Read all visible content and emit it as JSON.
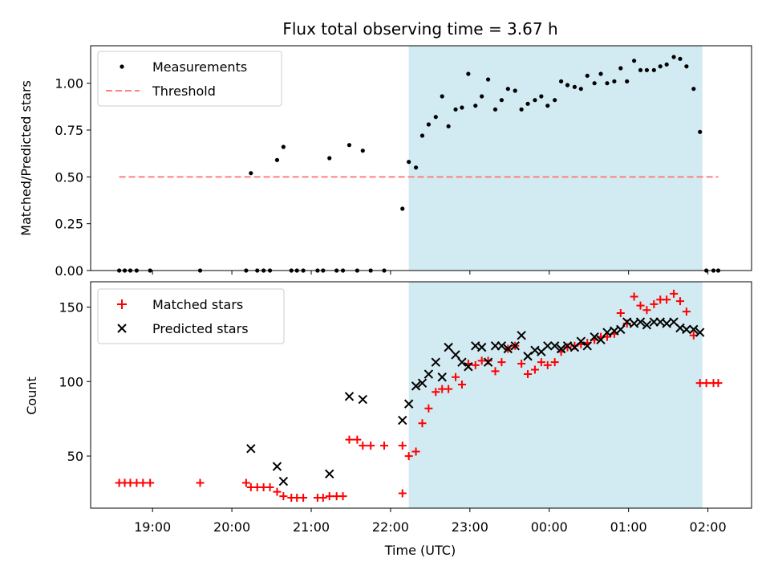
{
  "chart_data": [
    {
      "type": "scatter",
      "title": "Flux total observing time = 3.67 h",
      "xlabel": "",
      "ylabel": "Matched/Predicted stars",
      "xlim": [
        18.22,
        26.55
      ],
      "ylim": [
        0,
        1.2
      ],
      "yticks": [
        0.0,
        0.25,
        0.5,
        0.75,
        1.0
      ],
      "ytick_labels": [
        "0.00",
        "0.25",
        "0.50",
        "0.75",
        "1.00"
      ],
      "shaded_span": [
        22.23,
        25.93
      ],
      "shade_color": "#add8e6",
      "legend_position": "upper-left",
      "series": [
        {
          "name": "Measurements",
          "marker": "dot",
          "color": "#000000",
          "points": [
            [
              18.58,
              0
            ],
            [
              18.65,
              0
            ],
            [
              18.72,
              0
            ],
            [
              18.8,
              0
            ],
            [
              18.97,
              0
            ],
            [
              19.6,
              0
            ],
            [
              20.18,
              0
            ],
            [
              20.24,
              0.52
            ],
            [
              20.32,
              0
            ],
            [
              20.4,
              0
            ],
            [
              20.48,
              0
            ],
            [
              20.57,
              0.59
            ],
            [
              20.65,
              0.66
            ],
            [
              20.75,
              0
            ],
            [
              20.82,
              0
            ],
            [
              20.9,
              0
            ],
            [
              21.08,
              0
            ],
            [
              21.15,
              0
            ],
            [
              21.23,
              0.6
            ],
            [
              21.32,
              0
            ],
            [
              21.4,
              0
            ],
            [
              21.48,
              0.67
            ],
            [
              21.58,
              0
            ],
            [
              21.65,
              0.64
            ],
            [
              21.75,
              0
            ],
            [
              21.92,
              0
            ],
            [
              22.15,
              0.33
            ],
            [
              22.23,
              0.58
            ],
            [
              22.32,
              0.55
            ],
            [
              22.4,
              0.72
            ],
            [
              22.48,
              0.78
            ],
            [
              22.57,
              0.82
            ],
            [
              22.65,
              0.93
            ],
            [
              22.73,
              0.77
            ],
            [
              22.82,
              0.86
            ],
            [
              22.9,
              0.87
            ],
            [
              22.98,
              1.05
            ],
            [
              23.07,
              0.88
            ],
            [
              23.15,
              0.93
            ],
            [
              23.23,
              1.02
            ],
            [
              23.32,
              0.86
            ],
            [
              23.4,
              0.91
            ],
            [
              23.48,
              0.97
            ],
            [
              23.57,
              0.96
            ],
            [
              23.65,
              0.86
            ],
            [
              23.73,
              0.89
            ],
            [
              23.82,
              0.91
            ],
            [
              23.9,
              0.93
            ],
            [
              23.98,
              0.88
            ],
            [
              24.07,
              0.91
            ],
            [
              24.15,
              1.01
            ],
            [
              24.23,
              0.99
            ],
            [
              24.32,
              0.98
            ],
            [
              24.4,
              0.97
            ],
            [
              24.48,
              1.04
            ],
            [
              24.57,
              1.0
            ],
            [
              24.65,
              1.05
            ],
            [
              24.73,
              1.0
            ],
            [
              24.82,
              1.01
            ],
            [
              24.9,
              1.08
            ],
            [
              24.98,
              1.01
            ],
            [
              25.07,
              1.12
            ],
            [
              25.15,
              1.07
            ],
            [
              25.23,
              1.07
            ],
            [
              25.32,
              1.07
            ],
            [
              25.4,
              1.09
            ],
            [
              25.48,
              1.1
            ],
            [
              25.57,
              1.14
            ],
            [
              25.65,
              1.13
            ],
            [
              25.73,
              1.09
            ],
            [
              25.82,
              0.97
            ],
            [
              25.9,
              0.74
            ],
            [
              25.98,
              0
            ],
            [
              26.07,
              0
            ],
            [
              26.13,
              0
            ]
          ]
        },
        {
          "name": "Threshold",
          "marker": "dashed-line",
          "color": "#ff7f7f",
          "x": [
            18.58,
            26.13
          ],
          "y": [
            0.5,
            0.5
          ]
        }
      ]
    },
    {
      "type": "scatter",
      "title": "",
      "xlabel": "Time (UTC)",
      "ylabel": "Count",
      "xlim": [
        18.22,
        26.55
      ],
      "ylim": [
        15,
        167
      ],
      "yticks": [
        50,
        100,
        150
      ],
      "ytick_labels": [
        "50",
        "100",
        "150"
      ],
      "xticks": [
        19,
        20,
        21,
        22,
        23,
        24,
        25,
        26
      ],
      "xtick_labels": [
        "19:00",
        "20:00",
        "21:00",
        "22:00",
        "23:00",
        "00:00",
        "01:00",
        "02:00"
      ],
      "shaded_span": [
        22.23,
        25.93
      ],
      "shade_color": "#add8e6",
      "legend_position": "upper-left",
      "series": [
        {
          "name": "Matched stars",
          "marker": "plus",
          "color": "#ff0000",
          "points": [
            [
              18.58,
              32
            ],
            [
              18.65,
              32
            ],
            [
              18.72,
              32
            ],
            [
              18.8,
              32
            ],
            [
              18.88,
              32
            ],
            [
              18.97,
              32
            ],
            [
              19.6,
              32
            ],
            [
              20.18,
              32
            ],
            [
              20.24,
              29
            ],
            [
              20.32,
              29
            ],
            [
              20.4,
              29
            ],
            [
              20.48,
              29
            ],
            [
              20.57,
              26
            ],
            [
              20.65,
              23
            ],
            [
              20.75,
              22
            ],
            [
              20.82,
              22
            ],
            [
              20.9,
              22
            ],
            [
              21.08,
              22
            ],
            [
              21.15,
              22
            ],
            [
              21.23,
              23
            ],
            [
              21.32,
              23
            ],
            [
              21.4,
              23
            ],
            [
              21.48,
              61
            ],
            [
              21.58,
              61
            ],
            [
              21.65,
              57
            ],
            [
              21.75,
              57
            ],
            [
              21.92,
              57
            ],
            [
              22.15,
              25
            ],
            [
              22.15,
              57
            ],
            [
              22.23,
              50
            ],
            [
              22.32,
              53
            ],
            [
              22.4,
              72
            ],
            [
              22.48,
              82
            ],
            [
              22.57,
              93
            ],
            [
              22.65,
              95
            ],
            [
              22.73,
              95
            ],
            [
              22.82,
              103
            ],
            [
              22.9,
              98
            ],
            [
              22.98,
              112
            ],
            [
              23.07,
              111
            ],
            [
              23.15,
              114
            ],
            [
              23.23,
              114
            ],
            [
              23.32,
              107
            ],
            [
              23.4,
              113
            ],
            [
              23.48,
              122
            ],
            [
              23.57,
              124
            ],
            [
              23.65,
              112
            ],
            [
              23.73,
              105
            ],
            [
              23.82,
              108
            ],
            [
              23.9,
              113
            ],
            [
              23.98,
              111
            ],
            [
              24.07,
              113
            ],
            [
              24.15,
              120
            ],
            [
              24.23,
              123
            ],
            [
              24.32,
              124
            ],
            [
              24.4,
              125
            ],
            [
              24.48,
              126
            ],
            [
              24.57,
              128
            ],
            [
              24.65,
              130
            ],
            [
              24.73,
              130
            ],
            [
              24.82,
              132
            ],
            [
              24.9,
              146
            ],
            [
              24.98,
              139
            ],
            [
              25.07,
              157
            ],
            [
              25.15,
              151
            ],
            [
              25.23,
              148
            ],
            [
              25.32,
              152
            ],
            [
              25.4,
              155
            ],
            [
              25.48,
              155
            ],
            [
              25.57,
              159
            ],
            [
              25.65,
              154
            ],
            [
              25.73,
              147
            ],
            [
              25.82,
              131
            ],
            [
              25.9,
              99
            ],
            [
              25.98,
              99
            ],
            [
              26.07,
              99
            ],
            [
              26.13,
              99
            ]
          ]
        },
        {
          "name": "Predicted stars",
          "marker": "cross",
          "color": "#000000",
          "points": [
            [
              20.24,
              55
            ],
            [
              20.57,
              43
            ],
            [
              20.65,
              33
            ],
            [
              21.23,
              38
            ],
            [
              21.48,
              90
            ],
            [
              21.65,
              88
            ],
            [
              22.15,
              74
            ],
            [
              22.23,
              85
            ],
            [
              22.32,
              97
            ],
            [
              22.4,
              99
            ],
            [
              22.48,
              105
            ],
            [
              22.57,
              113
            ],
            [
              22.65,
              103
            ],
            [
              22.73,
              123
            ],
            [
              22.82,
              118
            ],
            [
              22.9,
              113
            ],
            [
              22.98,
              110
            ],
            [
              23.07,
              124
            ],
            [
              23.15,
              123
            ],
            [
              23.23,
              113
            ],
            [
              23.32,
              124
            ],
            [
              23.4,
              124
            ],
            [
              23.48,
              122
            ],
            [
              23.57,
              124
            ],
            [
              23.65,
              131
            ],
            [
              23.73,
              117
            ],
            [
              23.82,
              121
            ],
            [
              23.9,
              120
            ],
            [
              23.98,
              124
            ],
            [
              24.07,
              124
            ],
            [
              24.15,
              122
            ],
            [
              24.23,
              124
            ],
            [
              24.32,
              123
            ],
            [
              24.4,
              127
            ],
            [
              24.48,
              124
            ],
            [
              24.57,
              130
            ],
            [
              24.65,
              128
            ],
            [
              24.73,
              133
            ],
            [
              24.82,
              134
            ],
            [
              24.9,
              135
            ],
            [
              24.98,
              140
            ],
            [
              25.07,
              139
            ],
            [
              25.15,
              140
            ],
            [
              25.23,
              138
            ],
            [
              25.32,
              140
            ],
            [
              25.4,
              140
            ],
            [
              25.48,
              139
            ],
            [
              25.57,
              140
            ],
            [
              25.65,
              136
            ],
            [
              25.73,
              135
            ],
            [
              25.82,
              135
            ],
            [
              25.9,
              133
            ]
          ]
        }
      ]
    }
  ]
}
